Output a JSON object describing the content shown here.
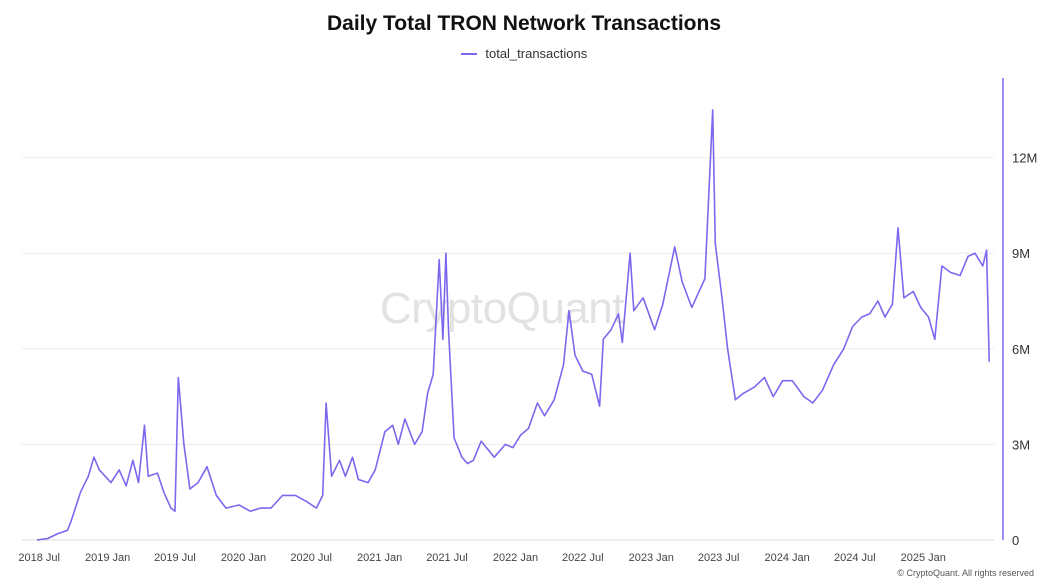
{
  "chart_data": {
    "type": "line",
    "title": "Daily Total TRON Network Transactions",
    "legend_placement": "top-center",
    "grid": "horizontal",
    "series": [
      {
        "name": "total_transactions",
        "color": "#7b68ee",
        "points": [
          [
            "2018-06-25",
            0.0
          ],
          [
            "2018-07-25",
            0.05
          ],
          [
            "2018-08-20",
            0.2
          ],
          [
            "2018-09-15",
            0.3
          ],
          [
            "2018-09-25",
            0.6
          ],
          [
            "2018-10-20",
            1.5
          ],
          [
            "2018-11-10",
            2.0
          ],
          [
            "2018-11-25",
            2.6
          ],
          [
            "2018-12-10",
            2.2
          ],
          [
            "2019-01-10",
            1.8
          ],
          [
            "2019-02-01",
            2.2
          ],
          [
            "2019-02-20",
            1.7
          ],
          [
            "2019-03-10",
            2.5
          ],
          [
            "2019-03-25",
            1.8
          ],
          [
            "2019-04-10",
            3.6
          ],
          [
            "2019-04-20",
            2.0
          ],
          [
            "2019-05-15",
            2.1
          ],
          [
            "2019-06-01",
            1.5
          ],
          [
            "2019-06-20",
            1.0
          ],
          [
            "2019-07-01",
            0.9
          ],
          [
            "2019-07-10",
            5.1
          ],
          [
            "2019-07-25",
            3.0
          ],
          [
            "2019-08-10",
            1.6
          ],
          [
            "2019-09-01",
            1.8
          ],
          [
            "2019-09-25",
            2.3
          ],
          [
            "2019-10-20",
            1.4
          ],
          [
            "2019-11-15",
            1.0
          ],
          [
            "2019-12-20",
            1.1
          ],
          [
            "2020-01-20",
            0.9
          ],
          [
            "2020-02-15",
            1.0
          ],
          [
            "2020-03-15",
            1.0
          ],
          [
            "2020-04-15",
            1.4
          ],
          [
            "2020-05-20",
            1.4
          ],
          [
            "2020-06-20",
            1.2
          ],
          [
            "2020-07-15",
            1.0
          ],
          [
            "2020-08-01",
            1.4
          ],
          [
            "2020-08-10",
            4.3
          ],
          [
            "2020-08-25",
            2.0
          ],
          [
            "2020-09-15",
            2.5
          ],
          [
            "2020-10-01",
            2.0
          ],
          [
            "2020-10-20",
            2.6
          ],
          [
            "2020-11-05",
            1.9
          ],
          [
            "2020-12-01",
            1.8
          ],
          [
            "2020-12-20",
            2.2
          ],
          [
            "2021-01-15",
            3.4
          ],
          [
            "2021-02-05",
            3.6
          ],
          [
            "2021-02-20",
            3.0
          ],
          [
            "2021-03-10",
            3.8
          ],
          [
            "2021-04-05",
            3.0
          ],
          [
            "2021-04-25",
            3.4
          ],
          [
            "2021-05-10",
            4.6
          ],
          [
            "2021-05-25",
            5.2
          ],
          [
            "2021-06-10",
            8.8
          ],
          [
            "2021-06-20",
            6.3
          ],
          [
            "2021-06-28",
            9.0
          ],
          [
            "2021-07-05",
            6.6
          ],
          [
            "2021-07-20",
            3.2
          ],
          [
            "2021-08-10",
            2.6
          ],
          [
            "2021-08-25",
            2.4
          ],
          [
            "2021-09-10",
            2.5
          ],
          [
            "2021-10-01",
            3.1
          ],
          [
            "2021-11-05",
            2.6
          ],
          [
            "2021-12-05",
            3.0
          ],
          [
            "2021-12-25",
            2.9
          ],
          [
            "2022-01-15",
            3.3
          ],
          [
            "2022-02-05",
            3.5
          ],
          [
            "2022-03-01",
            4.3
          ],
          [
            "2022-03-20",
            3.9
          ],
          [
            "2022-04-15",
            4.4
          ],
          [
            "2022-05-10",
            5.5
          ],
          [
            "2022-05-25",
            7.2
          ],
          [
            "2022-06-10",
            5.8
          ],
          [
            "2022-07-01",
            5.3
          ],
          [
            "2022-07-25",
            5.2
          ],
          [
            "2022-08-15",
            4.2
          ],
          [
            "2022-08-25",
            6.3
          ],
          [
            "2022-09-15",
            6.6
          ],
          [
            "2022-10-05",
            7.1
          ],
          [
            "2022-10-15",
            6.2
          ],
          [
            "2022-11-05",
            9.0
          ],
          [
            "2022-11-15",
            7.2
          ],
          [
            "2022-12-10",
            7.6
          ],
          [
            "2023-01-10",
            6.6
          ],
          [
            "2023-02-01",
            7.4
          ],
          [
            "2023-03-05",
            9.2
          ],
          [
            "2023-03-25",
            8.1
          ],
          [
            "2023-04-20",
            7.3
          ],
          [
            "2023-05-25",
            8.2
          ],
          [
            "2023-06-10",
            12.2
          ],
          [
            "2023-06-15",
            13.5
          ],
          [
            "2023-06-22",
            9.3
          ],
          [
            "2023-07-10",
            7.6
          ],
          [
            "2023-07-25",
            6.0
          ],
          [
            "2023-08-15",
            4.4
          ],
          [
            "2023-09-05",
            4.6
          ],
          [
            "2023-10-05",
            4.8
          ],
          [
            "2023-11-01",
            5.1
          ],
          [
            "2023-11-25",
            4.5
          ],
          [
            "2023-12-20",
            5.0
          ],
          [
            "2024-01-15",
            5.0
          ],
          [
            "2024-02-15",
            4.5
          ],
          [
            "2024-03-10",
            4.3
          ],
          [
            "2024-04-05",
            4.7
          ],
          [
            "2024-05-05",
            5.5
          ],
          [
            "2024-06-01",
            6.0
          ],
          [
            "2024-06-25",
            6.7
          ],
          [
            "2024-07-20",
            7.0
          ],
          [
            "2024-08-10",
            7.1
          ],
          [
            "2024-09-01",
            7.5
          ],
          [
            "2024-09-20",
            7.0
          ],
          [
            "2024-10-10",
            7.4
          ],
          [
            "2024-10-25",
            9.8
          ],
          [
            "2024-11-10",
            7.6
          ],
          [
            "2024-12-05",
            7.8
          ],
          [
            "2024-12-25",
            7.3
          ],
          [
            "2025-01-15",
            7.0
          ],
          [
            "2025-02-01",
            6.3
          ],
          [
            "2025-02-20",
            8.6
          ],
          [
            "2025-03-15",
            8.4
          ],
          [
            "2025-04-10",
            8.3
          ],
          [
            "2025-05-01",
            8.9
          ],
          [
            "2025-05-20",
            9.0
          ],
          [
            "2025-06-10",
            8.6
          ],
          [
            "2025-06-20",
            9.1
          ],
          [
            "2025-06-27",
            5.6
          ]
        ]
      }
    ],
    "x_axis": {
      "tick_labels": [
        "2018 Jul",
        "2019 Jan",
        "2019 Jul",
        "2020 Jan",
        "2020 Jul",
        "2021 Jan",
        "2021 Jul",
        "2022 Jan",
        "2022 Jul",
        "2023 Jan",
        "2023 Jul",
        "2024 Jan",
        "2024 Jul",
        "2025 Jan"
      ],
      "tick_dates": [
        "2018-07-01",
        "2019-01-01",
        "2019-07-01",
        "2020-01-01",
        "2020-07-01",
        "2021-01-01",
        "2021-07-01",
        "2022-01-01",
        "2022-07-01",
        "2023-01-01",
        "2023-07-01",
        "2024-01-01",
        "2024-07-01",
        "2025-01-01"
      ],
      "range": [
        "2018-06-01",
        "2025-07-10"
      ]
    },
    "y_axis": {
      "position": "right",
      "unit": "millions",
      "range": [
        0,
        14.5
      ],
      "tick_values": [
        0,
        3,
        6,
        9,
        12
      ],
      "tick_labels": [
        "0",
        "3M",
        "6M",
        "9M",
        "12M"
      ]
    },
    "text": {
      "watermark": "CryptoQuant",
      "footer": "© CryptoQuant. All rights reserved"
    }
  }
}
